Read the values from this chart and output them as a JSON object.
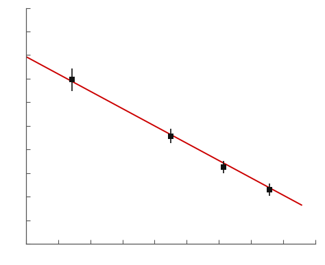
{
  "x": [
    1.0,
    2.5,
    3.3,
    4.0
  ],
  "y": [
    3.6,
    2.5,
    1.9,
    1.45
  ],
  "yerr": [
    0.22,
    0.14,
    0.12,
    0.12
  ],
  "line_x": [
    0.3,
    4.5
  ],
  "line_y": [
    4.05,
    1.15
  ],
  "line_color": "#cc0000",
  "marker_color": "#111111",
  "marker_size": 6,
  "xlim": [
    0.3,
    4.7
  ],
  "ylim": [
    0.4,
    5.0
  ],
  "bg_color": "#ffffff",
  "n_xticks": 9,
  "n_yticks": 10,
  "line_width": 1.4
}
